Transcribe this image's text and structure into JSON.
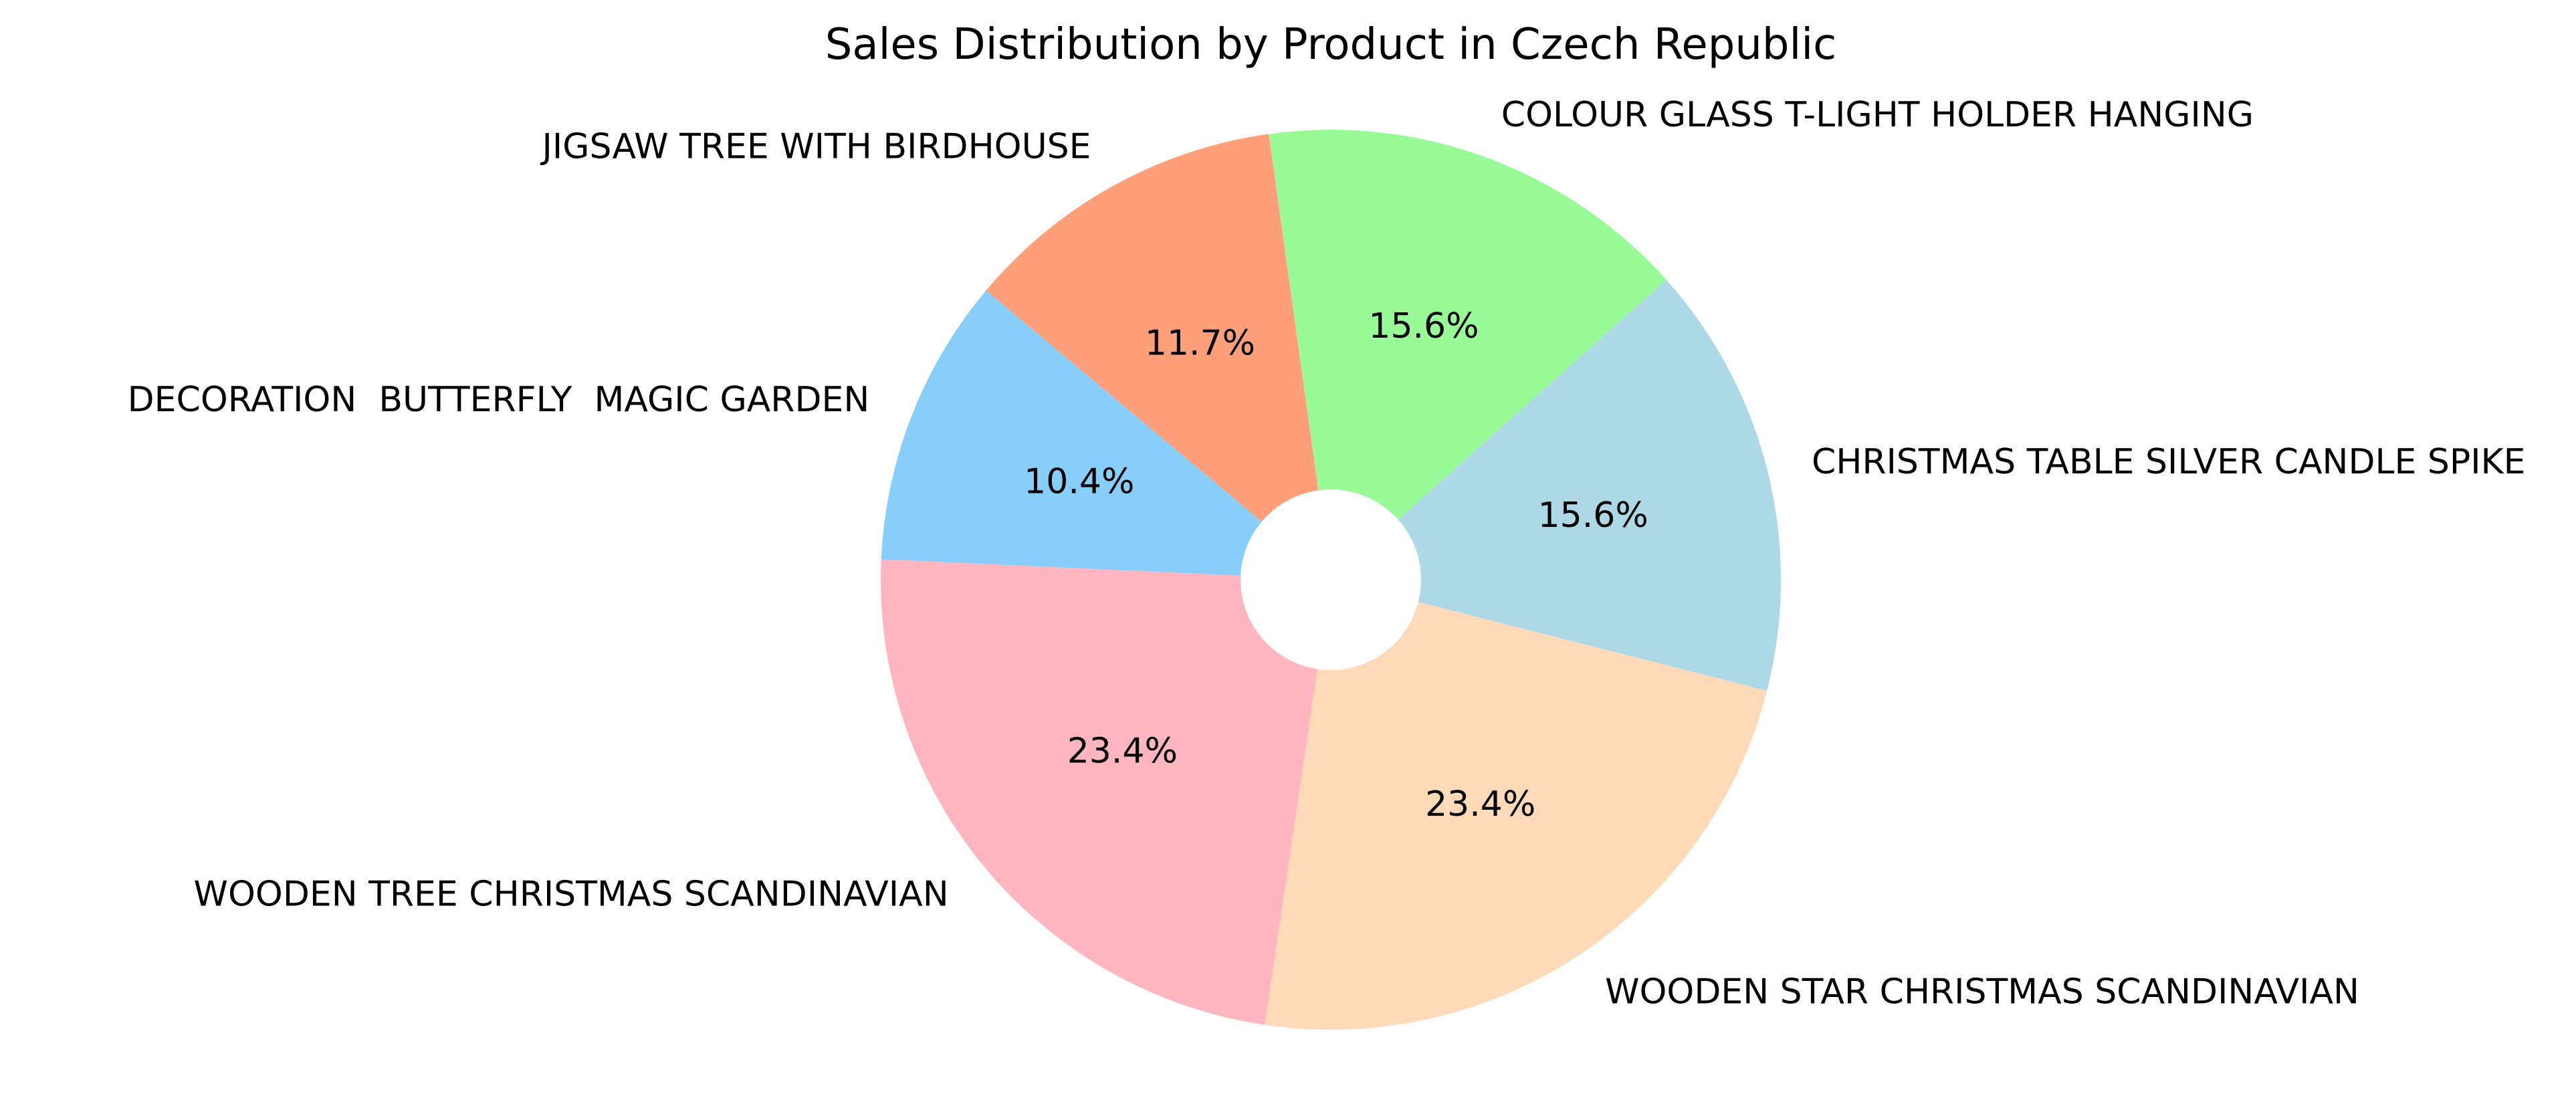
{
  "chart_data": {
    "type": "pie",
    "title": "Sales Distribution by Product in Czech Republic",
    "start_angle_deg": 140,
    "direction": "counterclockwise",
    "donut": true,
    "slices": [
      {
        "label": "DECORATION  BUTTERFLY  MAGIC GARDEN",
        "value": 10.4,
        "pct_label": "10.4%",
        "color": "#87cefa"
      },
      {
        "label": "WOODEN TREE CHRISTMAS SCANDINAVIAN",
        "value": 23.4,
        "pct_label": "23.4%",
        "color": "#ffb6c1"
      },
      {
        "label": "WOODEN STAR CHRISTMAS SCANDINAVIAN",
        "value": 23.4,
        "pct_label": "23.4%",
        "color": "#ffdab9"
      },
      {
        "label": "CHRISTMAS TABLE SILVER CANDLE SPIKE",
        "value": 15.6,
        "pct_label": "15.6%",
        "color": "#add8e6"
      },
      {
        "label": "COLOUR GLASS T-LIGHT HOLDER HANGING",
        "value": 15.6,
        "pct_label": "15.6%",
        "color": "#98fb98"
      },
      {
        "label": "JIGSAW TREE WITH BIRDHOUSE",
        "value": 11.7,
        "pct_label": "11.7%",
        "color": "#ffa07a"
      }
    ]
  }
}
